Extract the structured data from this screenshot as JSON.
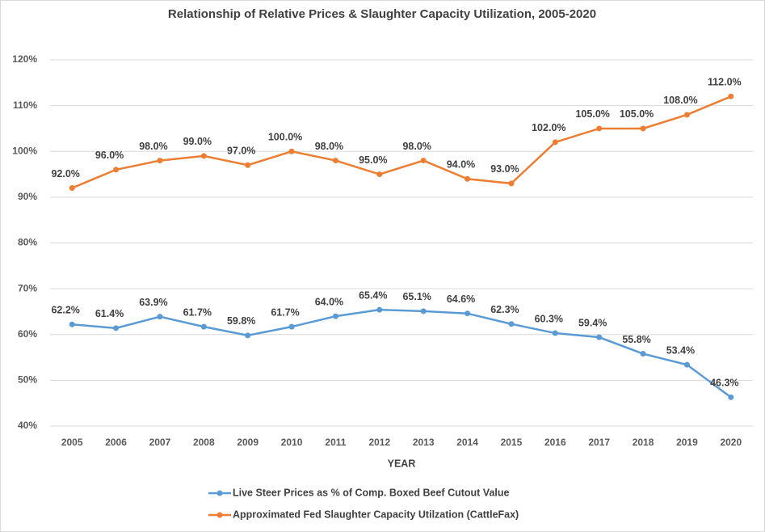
{
  "chart_data": {
    "type": "line",
    "title": "Relationship of Relative Prices & Slaughter Capacity Utilization, 2005-2020",
    "x_label": "YEAR",
    "categories": [
      "2005",
      "2006",
      "2007",
      "2008",
      "2009",
      "2010",
      "2011",
      "2012",
      "2013",
      "2014",
      "2015",
      "2016",
      "2017",
      "2018",
      "2019",
      "2020"
    ],
    "series": [
      {
        "name": "Live Steer Prices as % of Comp. Boxed Beef Cutout Value",
        "color": "#5b9bd5",
        "values": [
          62.2,
          61.4,
          63.9,
          61.7,
          59.8,
          61.7,
          64.0,
          65.4,
          65.1,
          64.6,
          62.3,
          60.3,
          59.4,
          55.8,
          53.4,
          46.3
        ],
        "value_labels": [
          "62.2%",
          "61.4%",
          "63.9%",
          "61.7%",
          "59.8%",
          "61.7%",
          "64.0%",
          "65.4%",
          "65.1%",
          "64.6%",
          "62.3%",
          "60.3%",
          "59.4%",
          "55.8%",
          "53.4%",
          "46.3%"
        ]
      },
      {
        "name": "Approximated Fed Slaughter Capacity Utilzation (CattleFax)",
        "color": "#ed7d31",
        "values": [
          92,
          96,
          98,
          99,
          97,
          100,
          98,
          95,
          98,
          94,
          93,
          102,
          105,
          105,
          108,
          112
        ],
        "value_labels": [
          "92.0%",
          "96.0%",
          "98.0%",
          "99.0%",
          "97.0%",
          "100.0%",
          "98.0%",
          "95.0%",
          "98.0%",
          "94.0%",
          "93.0%",
          "102.0%",
          "105.0%",
          "105.0%",
          "108.0%",
          "112.0%"
        ]
      }
    ],
    "ylim": [
      40,
      120
    ],
    "yticks": [
      {
        "value": 40,
        "label": "40%"
      },
      {
        "value": 50,
        "label": "50%"
      },
      {
        "value": 60,
        "label": "60%"
      },
      {
        "value": 70,
        "label": "70%"
      },
      {
        "value": 80,
        "label": "80%"
      },
      {
        "value": 90,
        "label": "90%"
      },
      {
        "value": 100,
        "label": "100%"
      },
      {
        "value": 110,
        "label": "110%"
      },
      {
        "value": 120,
        "label": "120%"
      }
    ],
    "grid": true,
    "legend": "bottom"
  }
}
